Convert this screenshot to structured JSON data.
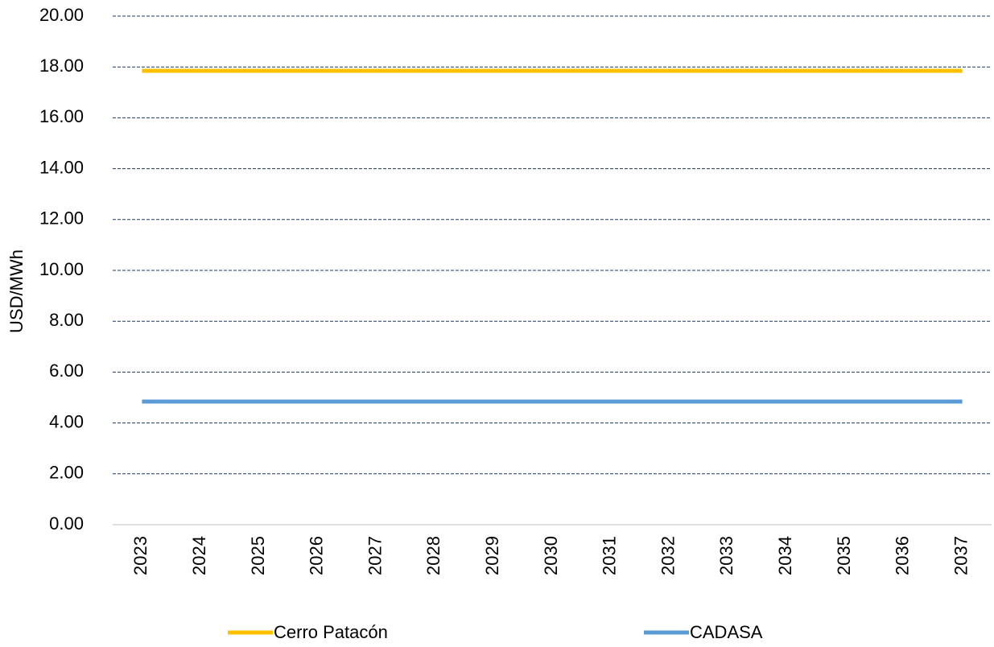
{
  "chart_data": {
    "type": "line",
    "y_label": "USD/MWh",
    "categories": [
      "2023",
      "2024",
      "2025",
      "2026",
      "2027",
      "2028",
      "2029",
      "2030",
      "2031",
      "2032",
      "2033",
      "2034",
      "2035",
      "2036",
      "2037"
    ],
    "series": [
      {
        "name": "Cerro Patacón",
        "color": "#ffc000",
        "values": [
          17.85,
          17.85,
          17.85,
          17.85,
          17.85,
          17.85,
          17.85,
          17.85,
          17.85,
          17.85,
          17.85,
          17.85,
          17.85,
          17.85,
          17.85
        ]
      },
      {
        "name": "CADASA",
        "color": "#5b9bd5",
        "values": [
          4.84,
          4.84,
          4.84,
          4.84,
          4.84,
          4.84,
          4.84,
          4.84,
          4.84,
          4.84,
          4.84,
          4.84,
          4.84,
          4.84,
          4.84
        ]
      }
    ],
    "ylim": [
      0,
      20
    ],
    "yticks": [
      {
        "value": 0,
        "label": "0.00"
      },
      {
        "value": 2,
        "label": "2.00"
      },
      {
        "value": 4,
        "label": "4.00"
      },
      {
        "value": 6,
        "label": "6.00"
      },
      {
        "value": 8,
        "label": "8.00"
      },
      {
        "value": 10,
        "label": "10.00"
      },
      {
        "value": 12,
        "label": "12.00"
      },
      {
        "value": 14,
        "label": "14.00"
      },
      {
        "value": 16,
        "label": "16.00"
      },
      {
        "value": 18,
        "label": "18.00"
      },
      {
        "value": 20,
        "label": "20.00"
      }
    ],
    "grid": true,
    "legend": "bottom"
  }
}
